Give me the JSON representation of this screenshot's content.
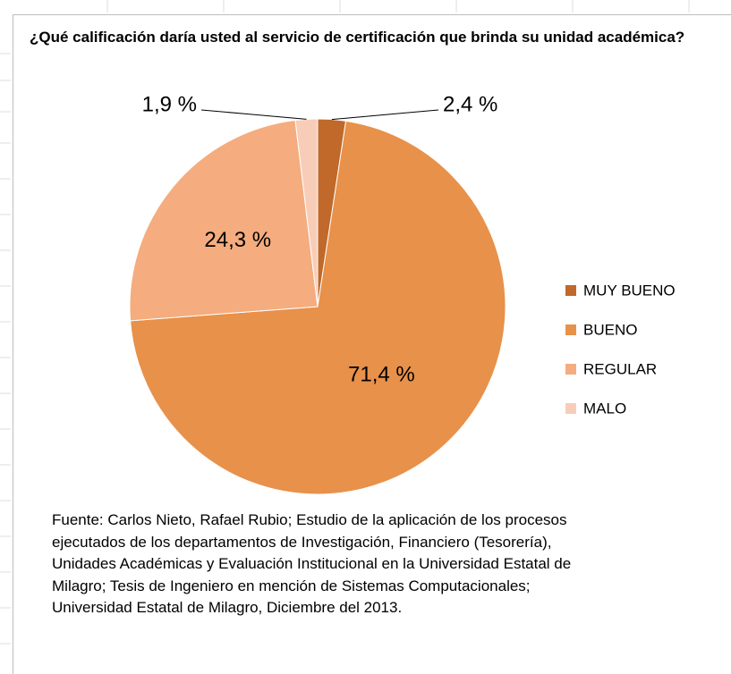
{
  "chart_data": {
    "type": "pie",
    "title": "¿Qué calificación daría usted al servicio de certificación que brinda su unidad académica?",
    "categories": [
      "MUY BUENO",
      "BUENO",
      "REGULAR",
      "MALO"
    ],
    "values": [
      2.4,
      71.4,
      24.3,
      1.9
    ],
    "value_labels": [
      "2,4 %",
      "71,4 %",
      "24,3 %",
      "1,9 %"
    ],
    "colors": [
      "#c0692a",
      "#e8914a",
      "#f5ac7e",
      "#f8cdb8"
    ],
    "legend": "right",
    "source": [
      "Fuente: Carlos Nieto, Rafael Rubio; Estudio de la aplicación de los procesos",
      "ejecutados de los  departamentos de Investigación, Financiero (Tesorería),",
      "Unidades Académicas y Evaluación Institucional en la Universidad Estatal de",
      "Milagro; Tesis de Ingeniero en mención de Sistemas Computacionales;",
      "Universidad Estatal de Milagro, Diciembre del 2013."
    ]
  }
}
